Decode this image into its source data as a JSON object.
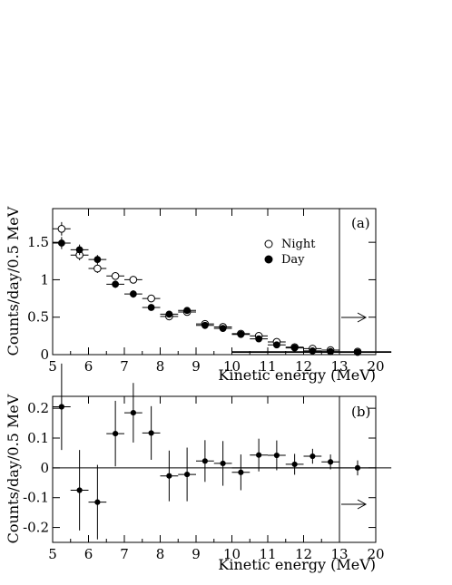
{
  "chart_data": [
    {
      "type": "scatter",
      "panel_label": "(a)",
      "xlabel": "Kinetic energy (MeV)",
      "ylabel": "Counts/day/0.5 MeV",
      "xlim": [
        5,
        20
      ],
      "ylim": [
        0,
        1.95
      ],
      "x_ticks": [
        "5",
        "6",
        "7",
        "8",
        "9",
        "10",
        "11",
        "12",
        "13",
        "20"
      ],
      "y_ticks": [
        {
          "value": 0,
          "label": "0"
        },
        {
          "value": 0.5,
          "label": "0.5"
        },
        {
          "value": 1,
          "label": "1"
        },
        {
          "value": 1.5,
          "label": "1.5"
        }
      ],
      "overflow_bin": {
        "range": "13-20",
        "indicator": "arrow-right"
      },
      "legend": {
        "position": "center-right"
      },
      "series": [
        {
          "name": "Night",
          "marker": "open-circle",
          "points": [
            {
              "x": 5.25,
              "y": 1.68,
              "err": 0.09
            },
            {
              "x": 5.75,
              "y": 1.33,
              "err": 0.07
            },
            {
              "x": 6.25,
              "y": 1.15,
              "err": 0.06
            },
            {
              "x": 6.75,
              "y": 1.05,
              "err": 0.05
            },
            {
              "x": 7.25,
              "y": 1.0,
              "err": 0.05
            },
            {
              "x": 7.75,
              "y": 0.75,
              "err": 0.05
            },
            {
              "x": 8.25,
              "y": 0.51,
              "err": 0.04
            },
            {
              "x": 8.75,
              "y": 0.57,
              "err": 0.04
            },
            {
              "x": 9.25,
              "y": 0.41,
              "err": 0.03
            },
            {
              "x": 9.75,
              "y": 0.37,
              "err": 0.03
            },
            {
              "x": 10.25,
              "y": 0.28,
              "err": 0.03
            },
            {
              "x": 10.75,
              "y": 0.25,
              "err": 0.02
            },
            {
              "x": 11.25,
              "y": 0.17,
              "err": 0.02
            },
            {
              "x": 11.75,
              "y": 0.1,
              "err": 0.02
            },
            {
              "x": 12.25,
              "y": 0.08,
              "err": 0.01
            },
            {
              "x": 12.75,
              "y": 0.06,
              "err": 0.01
            },
            {
              "x": 16.5,
              "y": 0.04,
              "err": 0.01
            }
          ]
        },
        {
          "name": "Day",
          "marker": "filled-circle",
          "points": [
            {
              "x": 5.25,
              "y": 1.49,
              "err": 0.08
            },
            {
              "x": 5.75,
              "y": 1.4,
              "err": 0.07
            },
            {
              "x": 6.25,
              "y": 1.27,
              "err": 0.06
            },
            {
              "x": 6.75,
              "y": 0.94,
              "err": 0.05
            },
            {
              "x": 7.25,
              "y": 0.81,
              "err": 0.05
            },
            {
              "x": 7.75,
              "y": 0.63,
              "err": 0.04
            },
            {
              "x": 8.25,
              "y": 0.54,
              "err": 0.04
            },
            {
              "x": 8.75,
              "y": 0.59,
              "err": 0.04
            },
            {
              "x": 9.25,
              "y": 0.39,
              "err": 0.03
            },
            {
              "x": 9.75,
              "y": 0.35,
              "err": 0.03
            },
            {
              "x": 10.25,
              "y": 0.27,
              "err": 0.03
            },
            {
              "x": 10.75,
              "y": 0.21,
              "err": 0.02
            },
            {
              "x": 11.25,
              "y": 0.13,
              "err": 0.02
            },
            {
              "x": 11.75,
              "y": 0.09,
              "err": 0.02
            },
            {
              "x": 12.25,
              "y": 0.05,
              "err": 0.01
            },
            {
              "x": 12.75,
              "y": 0.04,
              "err": 0.01
            },
            {
              "x": 16.5,
              "y": 0.03,
              "err": 0.01
            }
          ]
        }
      ]
    },
    {
      "type": "scatter",
      "panel_label": "(b)",
      "xlabel": "Kinetic energy (MeV)",
      "ylabel": "Counts/day/0.5 MeV",
      "xlim": [
        5,
        20
      ],
      "ylim": [
        -0.25,
        0.24
      ],
      "x_ticks": [
        "5",
        "6",
        "7",
        "8",
        "9",
        "10",
        "11",
        "12",
        "13",
        "20"
      ],
      "y_ticks": [
        {
          "value": 0.2,
          "label": "0.2"
        },
        {
          "value": 0.1,
          "label": "0.1"
        },
        {
          "value": 0,
          "label": "0"
        },
        {
          "value": -0.1,
          "label": "-0.1"
        },
        {
          "value": -0.2,
          "label": "-0.2"
        }
      ],
      "reference_line": 0,
      "overflow_bin": {
        "range": "13-20",
        "indicator": "arrow-right"
      },
      "series": [
        {
          "marker": "filled-circle",
          "points": [
            {
              "x": 5.25,
              "y": 0.205,
              "err": 0.145
            },
            {
              "x": 5.75,
              "y": -0.075,
              "err": 0.135
            },
            {
              "x": 6.25,
              "y": -0.115,
              "err": 0.125
            },
            {
              "x": 6.75,
              "y": 0.115,
              "err": 0.11
            },
            {
              "x": 7.25,
              "y": 0.185,
              "err": 0.1
            },
            {
              "x": 7.75,
              "y": 0.117,
              "err": 0.09
            },
            {
              "x": 8.25,
              "y": -0.027,
              "err": 0.085
            },
            {
              "x": 8.75,
              "y": -0.022,
              "err": 0.09
            },
            {
              "x": 9.25,
              "y": 0.023,
              "err": 0.07
            },
            {
              "x": 9.75,
              "y": 0.015,
              "err": 0.075
            },
            {
              "x": 10.25,
              "y": -0.015,
              "err": 0.06
            },
            {
              "x": 10.75,
              "y": 0.043,
              "err": 0.055
            },
            {
              "x": 11.25,
              "y": 0.042,
              "err": 0.05
            },
            {
              "x": 11.75,
              "y": 0.012,
              "err": 0.035
            },
            {
              "x": 12.25,
              "y": 0.039,
              "err": 0.025
            },
            {
              "x": 12.75,
              "y": 0.02,
              "err": 0.025
            },
            {
              "x": 16.5,
              "y": 0.0,
              "err": 0.025
            }
          ]
        }
      ]
    }
  ]
}
